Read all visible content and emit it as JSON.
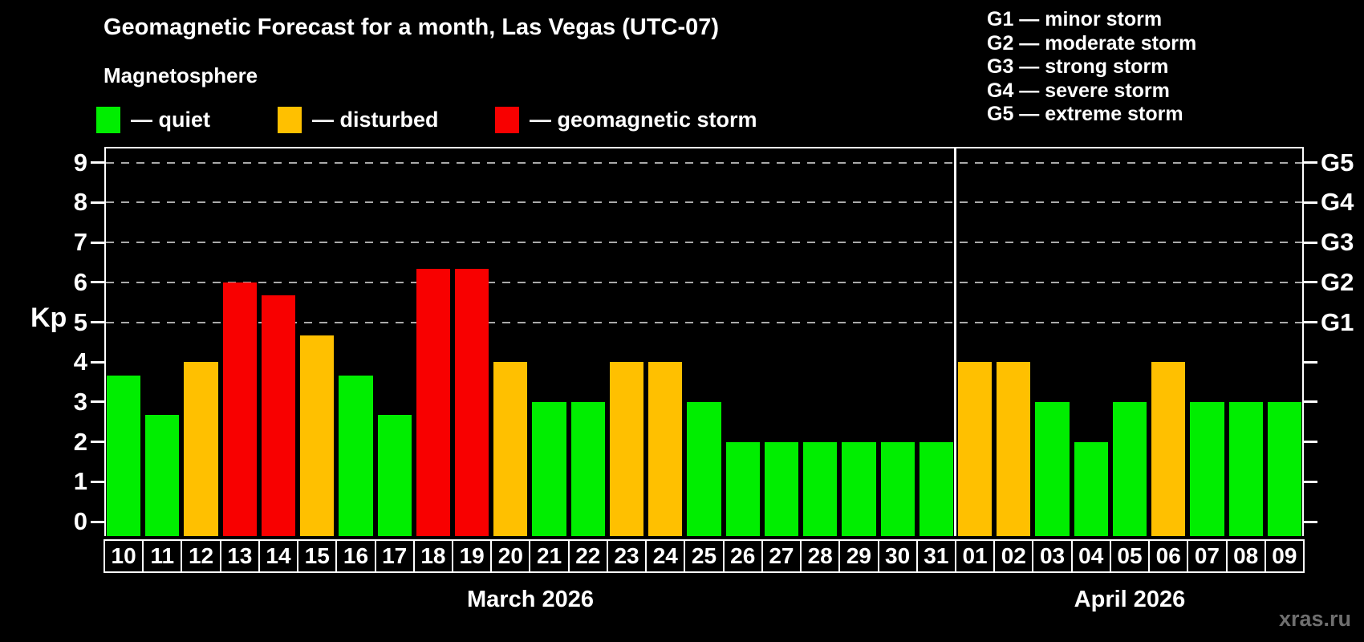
{
  "header": {
    "title": "Geomagnetic Forecast for a month, Las Vegas (UTC-07)",
    "subtitle": "Magnetosphere"
  },
  "legend": {
    "items": [
      {
        "label": "— quiet",
        "status": "quiet"
      },
      {
        "label": "— disturbed",
        "status": "disturbed"
      },
      {
        "label": "— geomagnetic storm",
        "status": "storm"
      }
    ]
  },
  "g_legend": {
    "items": [
      "G1 — minor storm",
      "G2 — moderate storm",
      "G3 — strong storm",
      "G4 — severe storm",
      "G5 — extreme storm"
    ]
  },
  "watermark": "xras.ru",
  "colors": {
    "quiet": "#00ee00",
    "disturbed": "#ffc000",
    "storm": "#f80000",
    "background": "#000000",
    "axis": "#ffffff",
    "gridline": "#aaaaaa",
    "watermark_color": "#6f6f6f"
  },
  "chart_data": {
    "type": "bar",
    "title": "Geomagnetic Forecast for a month, Las Vegas (UTC-07)",
    "xlabel": "",
    "ylabel": "Kp",
    "ylim": [
      0,
      9.4
    ],
    "grid": "horizontal dashed lines only at Kp 5,6,7,8,9 (G1–G5 levels)",
    "gridlines_at": [
      5,
      6,
      7,
      8,
      9
    ],
    "y_ticks": [
      0,
      1,
      2,
      3,
      4,
      5,
      6,
      7,
      8,
      9
    ],
    "legend_position": "top-left",
    "right_axis": [
      {
        "kp": 5,
        "label": "G1"
      },
      {
        "kp": 6,
        "label": "G2"
      },
      {
        "kp": 7,
        "label": "G3"
      },
      {
        "kp": 8,
        "label": "G4"
      },
      {
        "kp": 9,
        "label": "G5"
      }
    ],
    "months": [
      {
        "label": "March 2026",
        "days": [
          {
            "day": "10",
            "kp": 3.67,
            "status": "quiet"
          },
          {
            "day": "11",
            "kp": 2.67,
            "status": "quiet"
          },
          {
            "day": "12",
            "kp": 4.0,
            "status": "disturbed"
          },
          {
            "day": "13",
            "kp": 6.0,
            "status": "storm"
          },
          {
            "day": "14",
            "kp": 5.67,
            "status": "storm"
          },
          {
            "day": "15",
            "kp": 4.67,
            "status": "disturbed"
          },
          {
            "day": "16",
            "kp": 3.67,
            "status": "quiet"
          },
          {
            "day": "17",
            "kp": 2.67,
            "status": "quiet"
          },
          {
            "day": "18",
            "kp": 6.33,
            "status": "storm"
          },
          {
            "day": "19",
            "kp": 6.33,
            "status": "storm"
          },
          {
            "day": "20",
            "kp": 4.0,
            "status": "disturbed"
          },
          {
            "day": "21",
            "kp": 3.0,
            "status": "quiet"
          },
          {
            "day": "22",
            "kp": 3.0,
            "status": "quiet"
          },
          {
            "day": "23",
            "kp": 4.0,
            "status": "disturbed"
          },
          {
            "day": "24",
            "kp": 4.0,
            "status": "disturbed"
          },
          {
            "day": "25",
            "kp": 3.0,
            "status": "quiet"
          },
          {
            "day": "26",
            "kp": 2.0,
            "status": "quiet"
          },
          {
            "day": "27",
            "kp": 2.0,
            "status": "quiet"
          },
          {
            "day": "28",
            "kp": 2.0,
            "status": "quiet"
          },
          {
            "day": "29",
            "kp": 2.0,
            "status": "quiet"
          },
          {
            "day": "30",
            "kp": 2.0,
            "status": "quiet"
          },
          {
            "day": "31",
            "kp": 2.0,
            "status": "quiet"
          }
        ]
      },
      {
        "label": "April 2026",
        "days": [
          {
            "day": "01",
            "kp": 4.0,
            "status": "disturbed"
          },
          {
            "day": "02",
            "kp": 4.0,
            "status": "disturbed"
          },
          {
            "day": "03",
            "kp": 3.0,
            "status": "quiet"
          },
          {
            "day": "04",
            "kp": 2.0,
            "status": "quiet"
          },
          {
            "day": "05",
            "kp": 3.0,
            "status": "quiet"
          },
          {
            "day": "06",
            "kp": 4.0,
            "status": "disturbed"
          },
          {
            "day": "07",
            "kp": 3.0,
            "status": "quiet"
          },
          {
            "day": "08",
            "kp": 3.0,
            "status": "quiet"
          },
          {
            "day": "09",
            "kp": 3.0,
            "status": "quiet"
          }
        ]
      }
    ]
  }
}
